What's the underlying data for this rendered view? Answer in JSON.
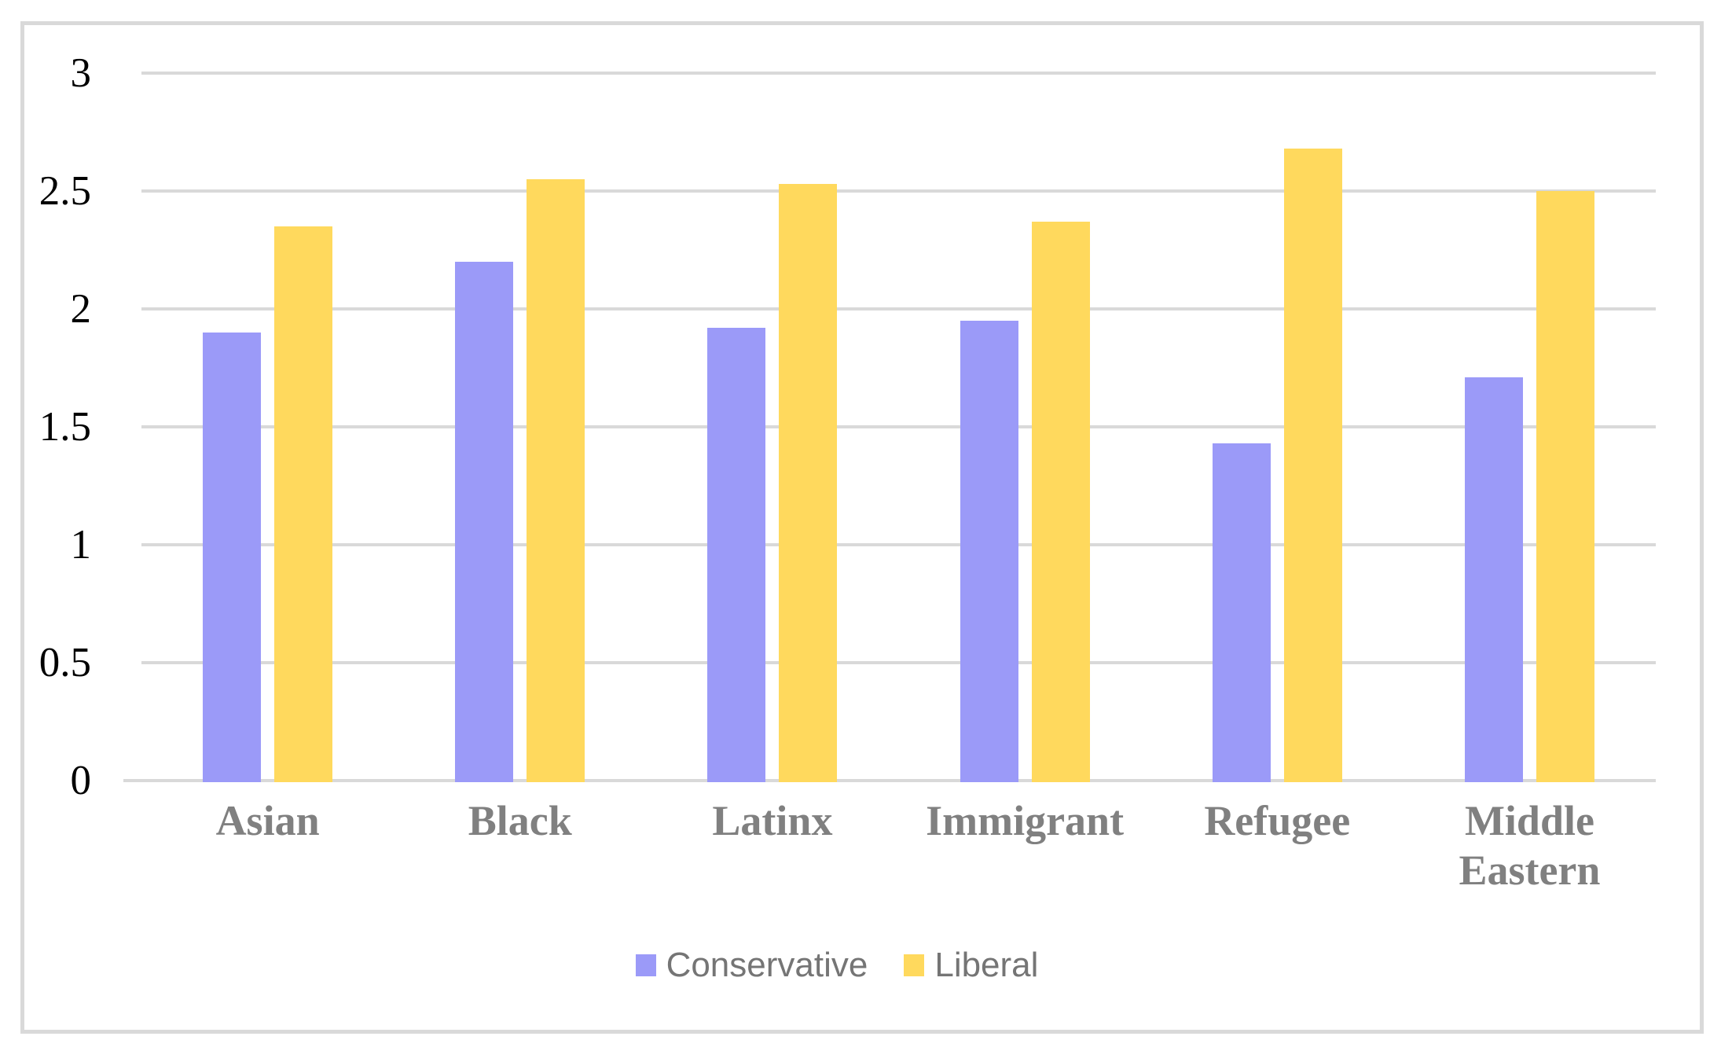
{
  "chart_data": {
    "type": "bar",
    "title": "",
    "categories": [
      "Asian",
      "Black",
      "Latinx",
      "Immigrant",
      "Refugee",
      "Middle Eastern"
    ],
    "series": [
      {
        "name": "Conservative",
        "color": "#9B9AF8",
        "values": [
          1.9,
          2.2,
          1.92,
          1.95,
          1.43,
          1.71
        ]
      },
      {
        "name": "Liberal",
        "color": "#FFD95D",
        "values": [
          2.35,
          2.55,
          2.53,
          2.37,
          2.68,
          2.5
        ]
      }
    ],
    "y_axis": {
      "min": 0,
      "max": 3,
      "tick_interval": 0.5,
      "tick_labels": [
        "3",
        "2.5",
        "2",
        "1.5",
        "1",
        "0.5",
        "0"
      ]
    },
    "x_axis": {
      "label": ""
    },
    "legend": {
      "position": "bottom",
      "entries": [
        "Conservative",
        "Liberal"
      ]
    },
    "grid": true,
    "colors": {
      "gridline": "#D9D9D9",
      "frame_border": "#D9D9D9",
      "tick_label": "#000000",
      "category_label": "#808080",
      "legend_text": "#757575",
      "background": "#FFFFFF"
    }
  }
}
